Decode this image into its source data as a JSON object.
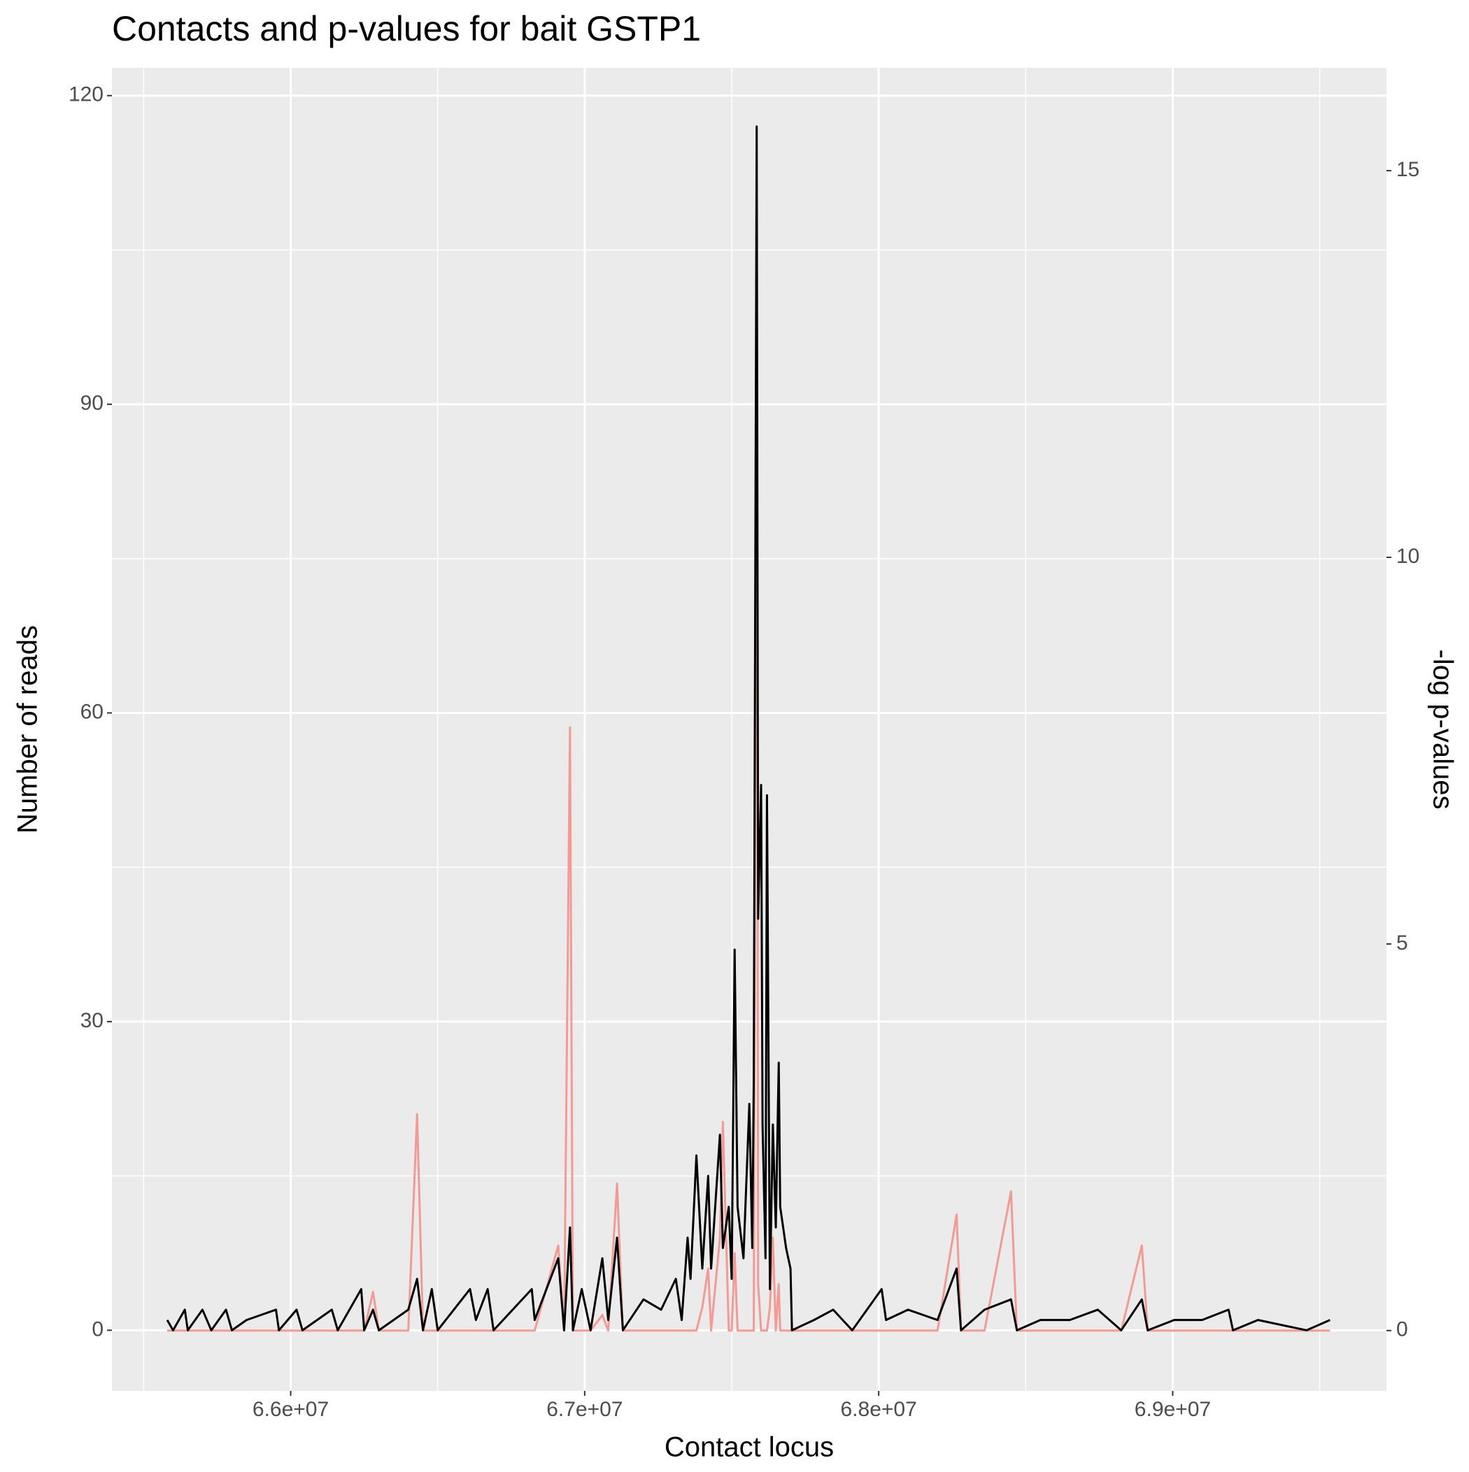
{
  "chart_data": {
    "type": "line",
    "title": "Contacts and p-values for bait GSTP1",
    "x_label": "Contact locus",
    "y_label": "Number of reads",
    "y2_label": "-log p-values",
    "x": [
      65580000,
      65600000,
      65640000,
      65650000,
      65700000,
      65730000,
      65780000,
      65800000,
      65850000,
      65950000,
      65960000,
      66020000,
      66040000,
      66140000,
      66160000,
      66240000,
      66250000,
      66280000,
      66300000,
      66400000,
      66430000,
      66450000,
      66480000,
      66500000,
      66610000,
      66630000,
      66670000,
      66690000,
      66820000,
      66830000,
      66910000,
      66930000,
      66950000,
      66960000,
      66990000,
      67020000,
      67060000,
      67080000,
      67110000,
      67130000,
      67200000,
      67260000,
      67310000,
      67330000,
      67350000,
      67360000,
      67380000,
      67400000,
      67420000,
      67430000,
      67460000,
      67470000,
      67490000,
      67500000,
      67510000,
      67520000,
      67540000,
      67560000,
      67570000,
      67575000,
      67585000,
      67590000,
      67600000,
      67605000,
      67615000,
      67620000,
      67630000,
      67640000,
      67650000,
      67660000,
      67665000,
      67685000,
      67700000,
      67705000,
      67780000,
      67845000,
      67910000,
      68010000,
      68025000,
      68100000,
      68200000,
      68265000,
      68280000,
      68360000,
      68450000,
      68470000,
      68550000,
      68650000,
      68745000,
      68825000,
      68895000,
      68915000,
      69005000,
      69100000,
      69190000,
      69205000,
      69290000,
      69455000,
      69535000
    ],
    "series": [
      {
        "name": "-log p-values",
        "color": "#f39a93",
        "axis": "y2",
        "values": [
          0,
          0,
          0,
          0,
          0,
          0,
          0,
          0,
          0,
          0,
          0,
          0,
          0,
          0,
          0,
          0,
          0,
          0.5,
          0,
          0,
          2.8,
          0,
          0,
          0,
          0,
          0,
          0,
          0,
          0,
          0,
          1.1,
          0,
          7.8,
          0,
          0,
          0,
          0.2,
          0,
          1.9,
          0,
          0,
          0,
          0,
          0,
          0,
          0,
          0,
          0.3,
          0.8,
          0,
          1.2,
          2.7,
          0,
          0,
          1,
          0,
          0,
          0,
          0,
          0,
          13.6,
          0.6,
          0,
          0,
          0,
          0,
          0.3,
          1.2,
          0,
          0.6,
          0,
          0,
          0,
          0,
          0,
          0,
          0,
          0,
          0,
          0,
          0,
          1.5,
          0,
          0,
          1.8,
          0,
          0,
          0,
          0,
          0,
          1.1,
          0,
          0,
          0,
          0,
          0,
          0,
          0,
          0
        ]
      },
      {
        "name": "Number of reads",
        "color": "#000000",
        "values": [
          1,
          0,
          2,
          0,
          2,
          0,
          2,
          0,
          1,
          2,
          0,
          2,
          0,
          2,
          0,
          4,
          0,
          2,
          0,
          2,
          5,
          0,
          4,
          0,
          4,
          1,
          4,
          0,
          4,
          1,
          7,
          0,
          10,
          0,
          4,
          0,
          7,
          1,
          9,
          0,
          3,
          2,
          5,
          1,
          9,
          5,
          17,
          6,
          15,
          6,
          19,
          8,
          12,
          5,
          37,
          12,
          7,
          22,
          8,
          24,
          117,
          40,
          53,
          20,
          7,
          52,
          4,
          20,
          10,
          26,
          12,
          8,
          6,
          0,
          1,
          2,
          0,
          4,
          1,
          2,
          1,
          6,
          0,
          2,
          3,
          0,
          1,
          1,
          2,
          0,
          3,
          0,
          1,
          1,
          2,
          0,
          1,
          0,
          1
        ]
      }
    ],
    "xlim": [
      65392000,
      69727000
    ],
    "xticks": [
      {
        "value": 66000000,
        "label": "6.6e+07"
      },
      {
        "value": 67000000,
        "label": "6.7e+07"
      },
      {
        "value": 68000000,
        "label": "6.8e+07"
      },
      {
        "value": 69000000,
        "label": "6.9e+07"
      }
    ],
    "ylim": [
      -5.89,
      122.7
    ],
    "yticks": [
      0,
      30,
      60,
      90,
      120
    ],
    "y2lim": [
      -0.78,
      16.33
    ],
    "y2ticks": [
      0,
      5,
      10,
      15
    ],
    "grid": true,
    "legend": false
  }
}
